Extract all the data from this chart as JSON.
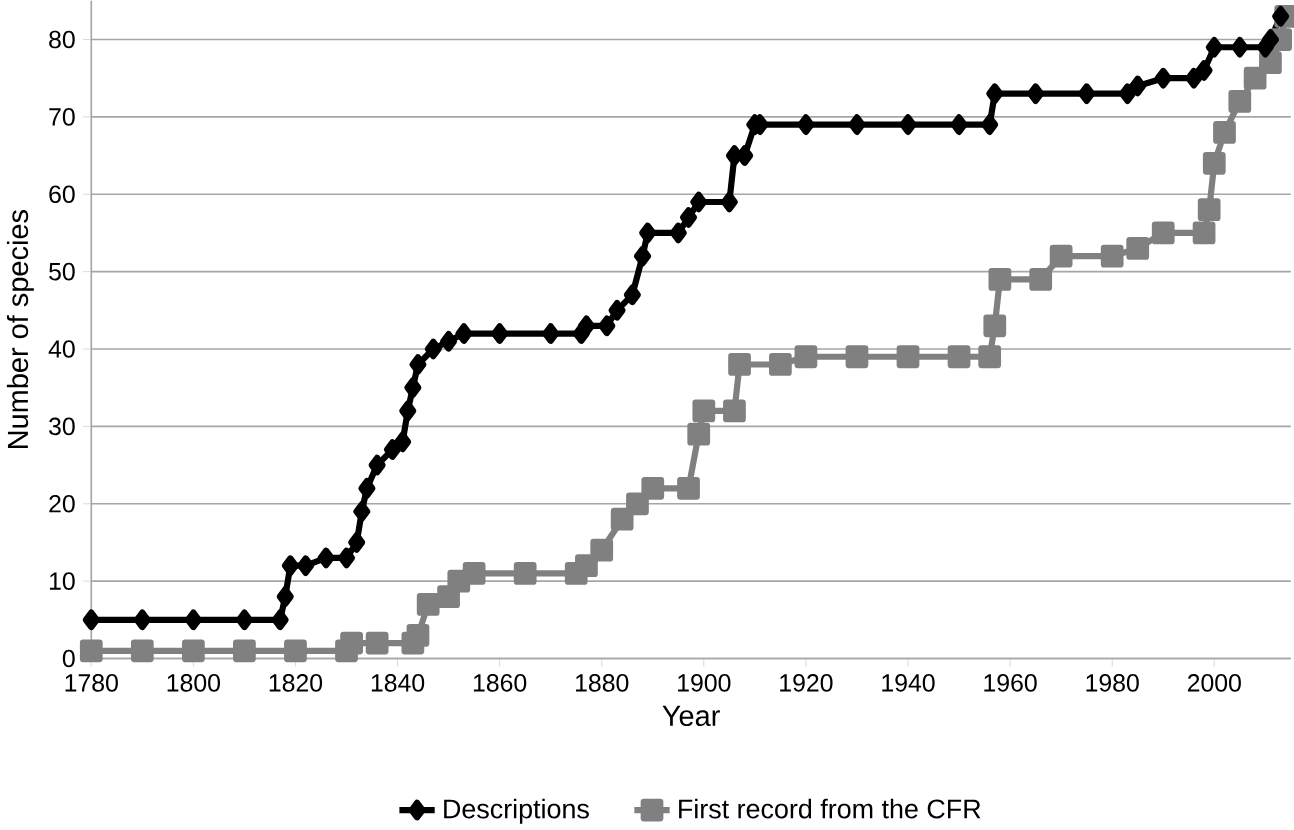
{
  "chart_data": {
    "type": "line",
    "xlabel": "Year",
    "ylabel": "Number of species",
    "xlim": [
      1780,
      2015
    ],
    "ylim": [
      0,
      85
    ],
    "xticks": [
      1780,
      1800,
      1820,
      1840,
      1860,
      1880,
      1900,
      1920,
      1940,
      1960,
      1980,
      2000
    ],
    "yticks": [
      0,
      10,
      20,
      30,
      40,
      50,
      60,
      70,
      80
    ],
    "grid": "y",
    "legend": "bottom",
    "series": [
      {
        "name": "Descriptions",
        "color": "#000000",
        "marker": "diamond",
        "x": [
          1780,
          1790,
          1800,
          1810,
          1817,
          1818,
          1819,
          1822,
          1826,
          1830,
          1832,
          1833,
          1834,
          1836,
          1839,
          1841,
          1842,
          1843,
          1844,
          1847,
          1850,
          1853,
          1860,
          1870,
          1876,
          1877,
          1881,
          1883,
          1886,
          1888,
          1889,
          1895,
          1897,
          1899,
          1905,
          1906,
          1908,
          1910,
          1911,
          1920,
          1930,
          1940,
          1950,
          1956,
          1957,
          1965,
          1975,
          1983,
          1985,
          1990,
          1996,
          1998,
          2000,
          2005,
          2010,
          2011,
          2013
        ],
        "values": [
          5,
          5,
          5,
          5,
          5,
          8,
          12,
          12,
          13,
          13,
          15,
          19,
          22,
          25,
          27,
          28,
          32,
          35,
          38,
          40,
          41,
          42,
          42,
          42,
          42,
          43,
          43,
          45,
          47,
          52,
          55,
          55,
          57,
          59,
          59,
          65,
          65,
          69,
          69,
          69,
          69,
          69,
          69,
          69,
          73,
          73,
          73,
          73,
          74,
          75,
          75,
          76,
          79,
          79,
          79,
          80,
          83
        ]
      },
      {
        "name": "First record from the CFR",
        "color": "#808080",
        "marker": "square",
        "x": [
          1780,
          1790,
          1800,
          1810,
          1820,
          1830,
          1831,
          1836,
          1843,
          1844,
          1846,
          1850,
          1852,
          1855,
          1865,
          1875,
          1877,
          1880,
          1884,
          1887,
          1890,
          1897,
          1899,
          1900,
          1906,
          1907,
          1915,
          1920,
          1930,
          1940,
          1950,
          1956,
          1957,
          1958,
          1966,
          1970,
          1980,
          1985,
          1990,
          1998,
          1999,
          2000,
          2002,
          2005,
          2008,
          2011,
          2013,
          2014
        ],
        "values": [
          1,
          1,
          1,
          1,
          1,
          1,
          2,
          2,
          2,
          3,
          7,
          8,
          10,
          11,
          11,
          11,
          12,
          14,
          18,
          20,
          22,
          22,
          29,
          32,
          32,
          38,
          38,
          39,
          39,
          39,
          39,
          39,
          43,
          49,
          49,
          52,
          52,
          53,
          55,
          55,
          58,
          64,
          68,
          72,
          75,
          77,
          80,
          83
        ]
      }
    ]
  }
}
